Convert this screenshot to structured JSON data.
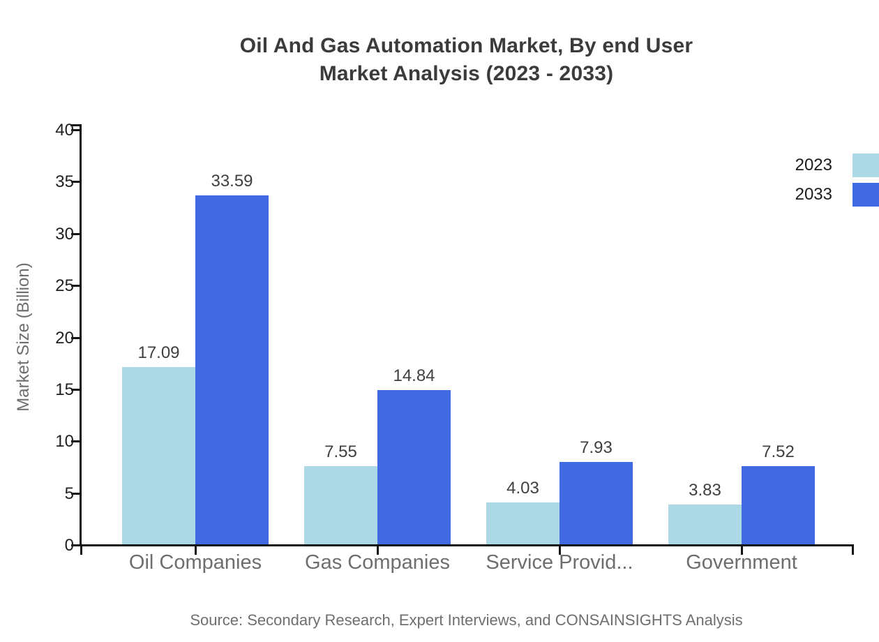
{
  "chart_data": {
    "type": "bar",
    "title_line1": "Oil And Gas Automation Market, By end User",
    "title_line2": "Market Analysis (2023 - 2033)",
    "ylabel": "Market Size (Billion)",
    "ylim": [
      0,
      40
    ],
    "ytick_step": 5,
    "grid": false,
    "legend_position": "top-right",
    "categories": [
      "Oil Companies",
      "Gas Companies",
      "Service Provid...",
      "Government"
    ],
    "series": [
      {
        "name": "2023",
        "color": "#ADD8E6",
        "values": [
          17.09,
          7.55,
          4.03,
          3.83
        ]
      },
      {
        "name": "2033",
        "color": "#4169E1",
        "values": [
          33.59,
          14.84,
          7.93,
          7.52
        ]
      }
    ],
    "source": "Source: Secondary Research, Expert Interviews, and CONSAINSIGHTS Analysis"
  },
  "colors": {
    "title": "#3b3b3b",
    "axis": "#141414",
    "tick_label": "#1f1f1f",
    "category_label": "#6e6e6e",
    "value_label": "#3f3f3f",
    "y_axis_title": "#6e6e6e",
    "legend_text": "#1c1c1c",
    "source_text": "#6f6f6f",
    "background": "#ffffff"
  }
}
